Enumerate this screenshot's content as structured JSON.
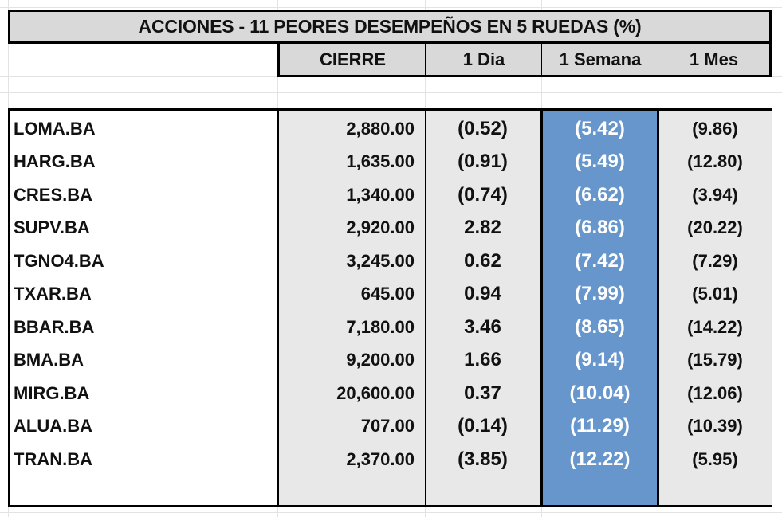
{
  "title": "ACCIONES   - 11 PEORES DESEMPEÑOS EN 5 RUEDAS (%)",
  "headers": [
    "CIERRE",
    "1 Dia",
    "1 Semana",
    "1 Mes"
  ],
  "colors": {
    "header_bg": "#d9d9d9",
    "week_bg": "#6796cd",
    "data_bg": "#e8e8e8",
    "week_text": "#ffffff"
  },
  "rows": [
    {
      "symbol": "LOMA.BA",
      "close": "2,880.00",
      "day": "(0.52)",
      "week": "(5.42)",
      "month": "(9.86)"
    },
    {
      "symbol": "HARG.BA",
      "close": "1,635.00",
      "day": "(0.91)",
      "week": "(5.49)",
      "month": "(12.80)"
    },
    {
      "symbol": "CRES.BA",
      "close": "1,340.00",
      "day": "(0.74)",
      "week": "(6.62)",
      "month": "(3.94)"
    },
    {
      "symbol": "SUPV.BA",
      "close": "2,920.00",
      "day": "2.82",
      "week": "(6.86)",
      "month": "(20.22)"
    },
    {
      "symbol": "TGNO4.BA",
      "close": "3,245.00",
      "day": "0.62",
      "week": "(7.42)",
      "month": "(7.29)"
    },
    {
      "symbol": "TXAR.BA",
      "close": "645.00",
      "day": "0.94",
      "week": "(7.99)",
      "month": "(5.01)"
    },
    {
      "symbol": "BBAR.BA",
      "close": "7,180.00",
      "day": "3.46",
      "week": "(8.65)",
      "month": "(14.22)"
    },
    {
      "symbol": "BMA.BA",
      "close": "9,200.00",
      "day": "1.66",
      "week": "(9.14)",
      "month": "(15.79)"
    },
    {
      "symbol": "MIRG.BA",
      "close": "20,600.00",
      "day": "0.37",
      "week": "(10.04)",
      "month": "(12.06)"
    },
    {
      "symbol": "ALUA.BA",
      "close": "707.00",
      "day": "(0.14)",
      "week": "(11.29)",
      "month": "(10.39)"
    },
    {
      "symbol": "TRAN.BA",
      "close": "2,370.00",
      "day": "(3.85)",
      "week": "(12.22)",
      "month": "(5.95)"
    }
  ]
}
